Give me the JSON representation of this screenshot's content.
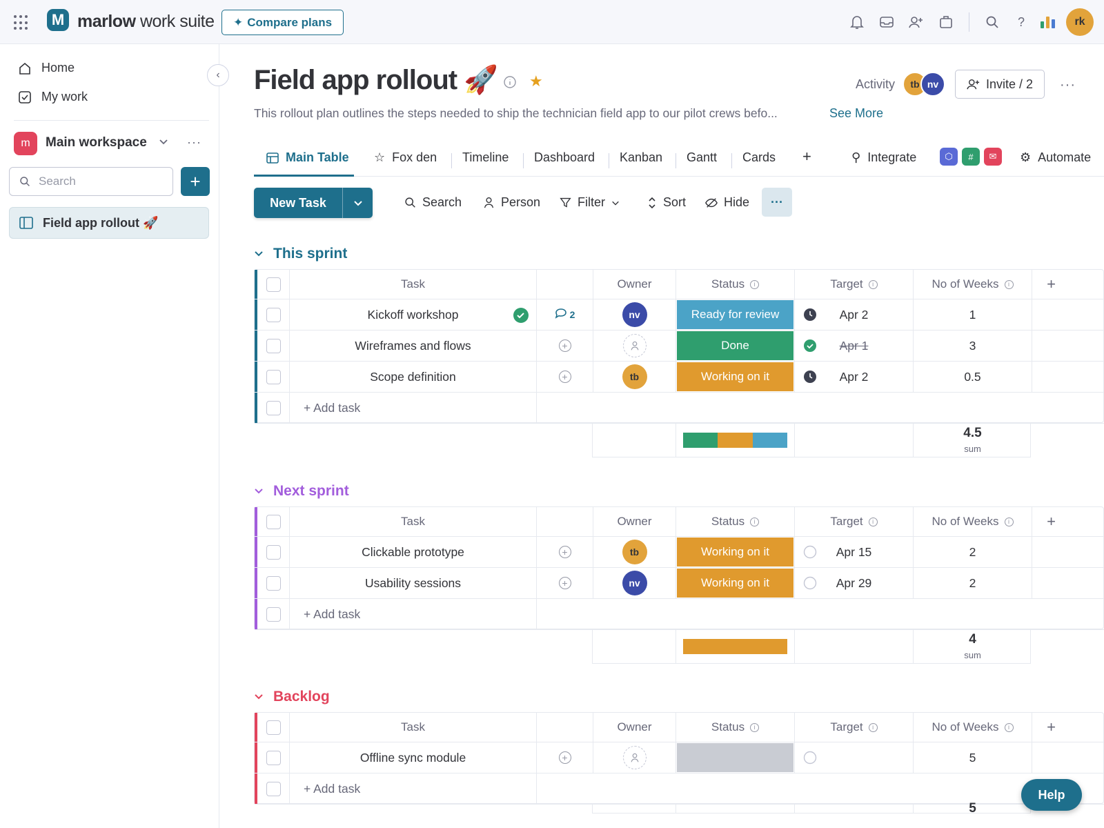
{
  "topbar": {
    "brand_bold": "marlow",
    "brand_rest": " work suite",
    "logo_letter": "M",
    "compare_label": "Compare plans",
    "user_initials": "rk",
    "icons": [
      "bell-icon",
      "inbox-icon",
      "invite-members-icon",
      "apps-icon",
      "search-icon",
      "help-icon",
      "apps-chart-icon"
    ]
  },
  "sidebar": {
    "home_label": "Home",
    "mywork_label": "My work",
    "workspace_badge": "m",
    "workspace_name": "Main workspace",
    "search_placeholder": "Search",
    "board_label": "Field app rollout 🚀"
  },
  "board": {
    "title": "Field app rollout 🚀",
    "activity_label": "Activity",
    "activity_avatars": [
      "tb",
      "nv"
    ],
    "invite_label": "Invite / 2",
    "description": "This rollout plan outlines the steps needed to ship the technician field app to our pilot crews befo...",
    "see_more": "See More"
  },
  "tabs": {
    "main_table": "Main Table",
    "fox_den": "Fox den",
    "timeline": "Timeline",
    "dashboard": "Dashboard",
    "kanban": "Kanban",
    "gantt": "Gantt",
    "cards": "Cards",
    "add": "+",
    "integrate": "Integrate",
    "automate": "Automate"
  },
  "toolbar": {
    "new_task": "New Task",
    "search": "Search",
    "person": "Person",
    "filter": "Filter",
    "sort": "Sort",
    "hide": "Hide",
    "more": "···"
  },
  "columns": {
    "task": "Task",
    "owner": "Owner",
    "status": "Status",
    "target": "Target",
    "weeks": "No of Weeks",
    "add": "+"
  },
  "colors": {
    "accent": "#1e6f8c",
    "ready": "#4ba3c7",
    "done": "#2f9e6e",
    "working": "#e09a2e",
    "empty_status": "#c9ccd3",
    "sprint_blue": "#1e6f8c",
    "next_purple": "#a25ddc",
    "backlog_pink": "#e2445c"
  },
  "groups": [
    {
      "name": "This sprint",
      "color": "#1e6f8c",
      "add_task": "+ Add task",
      "sum": "4.5",
      "sum_label": "sum",
      "rows": [
        {
          "task": "Kickoff workshop",
          "done_check": true,
          "comments": "2",
          "owner": "nv",
          "owner_color": "#3b4ba8",
          "status": "Ready for review",
          "status_color": "#4ba3c7",
          "target_icon": "clock",
          "target": "Apr 2",
          "strike": false,
          "weeks": "1"
        },
        {
          "task": "Wireframes and flows",
          "done_check": false,
          "comments": "",
          "owner": "",
          "owner_color": "",
          "status": "Done",
          "status_color": "#2f9e6e",
          "target_icon": "check",
          "target": "Apr 1",
          "strike": true,
          "weeks": "3"
        },
        {
          "task": "Scope definition",
          "done_check": false,
          "comments": "",
          "owner": "tb",
          "owner_color": "#e2a33b",
          "status": "Working on it",
          "status_color": "#e09a2e",
          "target_icon": "clock",
          "target": "Apr 2",
          "strike": false,
          "weeks": "0.5"
        }
      ],
      "bar": [
        {
          "color": "#2f9e6e",
          "share": 1
        },
        {
          "color": "#e09a2e",
          "share": 1
        },
        {
          "color": "#4ba3c7",
          "share": 1
        }
      ]
    },
    {
      "name": "Next sprint",
      "color": "#a25ddc",
      "add_task": "+ Add task",
      "sum": "4",
      "sum_label": "sum",
      "rows": [
        {
          "task": "Clickable prototype",
          "done_check": false,
          "comments": "",
          "owner": "tb",
          "owner_color": "#e2a33b",
          "status": "Working on it",
          "status_color": "#e09a2e",
          "target_icon": "circle",
          "target": "Apr 15",
          "strike": false,
          "weeks": "2"
        },
        {
          "task": "Usability sessions",
          "done_check": false,
          "comments": "",
          "owner": "nv",
          "owner_color": "#3b4ba8",
          "status": "Working on it",
          "status_color": "#e09a2e",
          "target_icon": "circle",
          "target": "Apr 29",
          "strike": false,
          "weeks": "2"
        }
      ],
      "bar": [
        {
          "color": "#e09a2e",
          "share": 1
        }
      ]
    },
    {
      "name": "Backlog",
      "color": "#e2445c",
      "add_task": "+ Add task",
      "sum": "5",
      "sum_label": "",
      "rows": [
        {
          "task": "Offline sync module",
          "done_check": false,
          "comments": "",
          "owner": "",
          "owner_color": "",
          "status": "",
          "status_color": "#c9ccd3",
          "target_icon": "circle",
          "target": "",
          "strike": false,
          "weeks": "5"
        }
      ],
      "bar": []
    }
  ],
  "help_label": "Help"
}
